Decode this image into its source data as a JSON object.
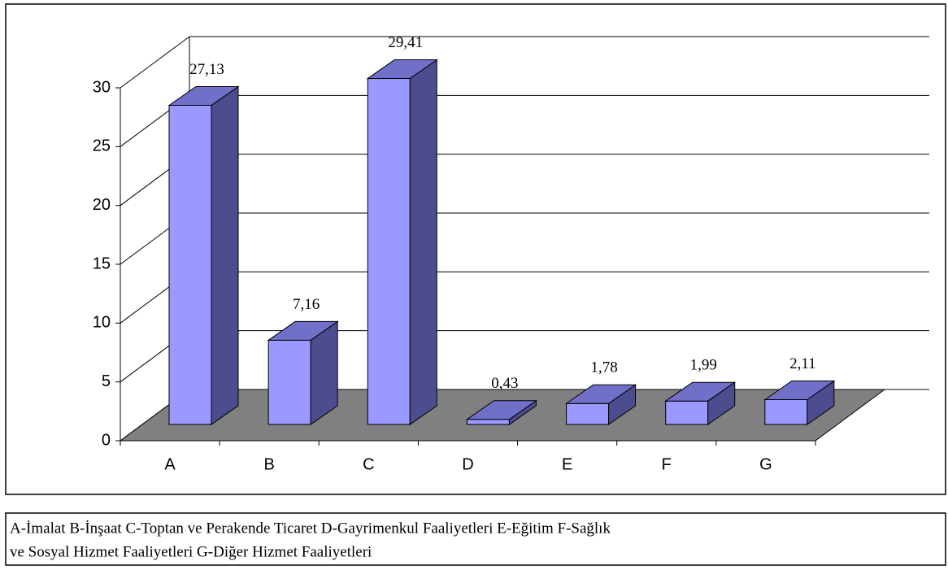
{
  "chart_data": {
    "type": "bar3d",
    "categories": [
      "A",
      "B",
      "C",
      "D",
      "E",
      "F",
      "G"
    ],
    "values": [
      27.13,
      7.16,
      29.41,
      0.43,
      1.78,
      1.99,
      2.11
    ],
    "value_labels": [
      "27,13",
      "7,16",
      "29,41",
      "0,43",
      "1,78",
      "1,99",
      "2,11"
    ],
    "ylim": [
      0,
      30
    ],
    "yticks": [
      0,
      5,
      10,
      15,
      20,
      25,
      30
    ],
    "grid": true,
    "colors": {
      "front": "#9999ff",
      "top": "#7070c8",
      "side": "#4c4c8e",
      "floor": "#808080"
    },
    "caption": [
      "A-İmalat  B-İnşaat  C-Toptan ve Perakende Ticaret  D-Gayrimenkul Faaliyetleri   E-Eğitim  F-Sağlık",
      "ve Sosyal Hizmet Faaliyetleri  G-Diğer Hizmet Faaliyetleri"
    ]
  }
}
